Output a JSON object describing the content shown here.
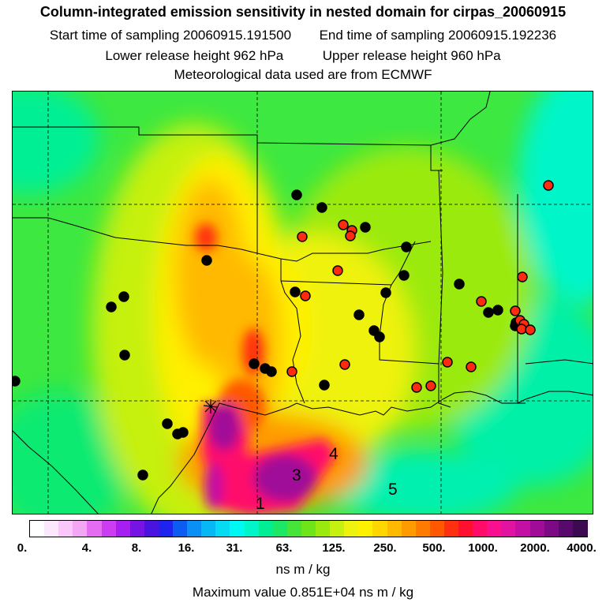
{
  "title": {
    "line1": "Column-integrated emission sensitivity in nested domain for cirpas_20060915",
    "start_label": "Start time of sampling 20060915.191500",
    "end_label": "End time of sampling 20060915.192236",
    "lower_label": "Lower release height  962 hPa",
    "upper_label": "Upper release height  960 hPa",
    "met_label": "Meteorological data used are from ECMWF"
  },
  "map": {
    "region_labels": [
      "1",
      "3",
      "4",
      "5"
    ],
    "receptor_marker": "release-point-icon",
    "site_markers": {
      "black_count": 30,
      "red_count": 22
    }
  },
  "colorbar": {
    "ticks": [
      "0.",
      "4.",
      "8.",
      "16.",
      "31.",
      "63.",
      "125.",
      "250.",
      "500.",
      "1000.",
      "2000.",
      "4000."
    ],
    "colors": [
      "#ffffff",
      "#fde7fd",
      "#f9c7f9",
      "#f3a6f3",
      "#e46cf0",
      "#cc3df2",
      "#a51ff0",
      "#7614e6",
      "#4a14e0",
      "#1e24ee",
      "#0c5cf2",
      "#0a8ff5",
      "#08b8f4",
      "#05dbf2",
      "#00f8f2",
      "#00f5c8",
      "#00ef94",
      "#1ae866",
      "#46e43b",
      "#6ee41a",
      "#9bea0f",
      "#c6f00f",
      "#eef20f",
      "#fff000",
      "#ffd600",
      "#ffb900",
      "#ff9a00",
      "#ff7a00",
      "#ff5800",
      "#ff3010",
      "#ff1030",
      "#ff0c6a",
      "#f8108e",
      "#e014a0",
      "#c210a4",
      "#a00c98",
      "#7c0a84",
      "#580a6c",
      "#3c0a50"
    ],
    "units": "ns m / kg"
  },
  "max_value_label": "Maximum value  0.851E+04 ns m / kg",
  "colors": {
    "background_low": "#00f5c8",
    "medium": "#c6f00f",
    "high": "#ff9a00",
    "peak": "#a00c98",
    "site_black": "#000000",
    "site_red": "#ff2a10"
  }
}
